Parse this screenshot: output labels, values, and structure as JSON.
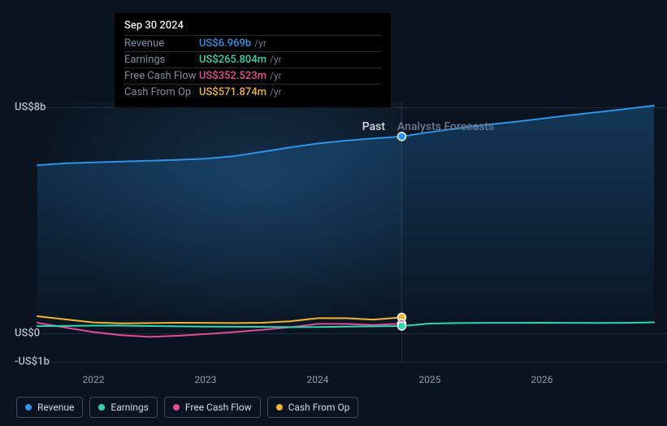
{
  "chart": {
    "type": "line",
    "background_color": "#0a1420",
    "gridline_color": "rgba(150,170,190,0.15)",
    "y_axis": {
      "ticks": [
        {
          "label": "US$8b",
          "value": 8000
        },
        {
          "label": "US$0",
          "value": 0
        },
        {
          "label": "-US$1b",
          "value": -1000
        }
      ],
      "min": -1000,
      "max": 8200
    },
    "x_axis": {
      "ticks": [
        "2022",
        "2023",
        "2024",
        "2025",
        "2026"
      ],
      "min": 2021.5,
      "max": 2027
    },
    "past_label": "Past",
    "forecast_label": "Analysts Forecasts",
    "divider_x": 2024.75,
    "past_overlay_color": "rgba(120,180,230,0.02)",
    "gradient_top": "rgba(35,120,190,0.35)",
    "gradient_bottom": "rgba(35,120,190,0.0)",
    "marker_radius": 5,
    "marker_stroke": "#ffffff",
    "series": [
      {
        "id": "revenue",
        "label": "Revenue",
        "color": "#2e93e6",
        "fill": true,
        "width": 2,
        "points": [
          [
            2021.5,
            5950
          ],
          [
            2021.75,
            6020
          ],
          [
            2022,
            6050
          ],
          [
            2022.25,
            6080
          ],
          [
            2022.5,
            6110
          ],
          [
            2022.75,
            6140
          ],
          [
            2023,
            6180
          ],
          [
            2023.25,
            6270
          ],
          [
            2023.5,
            6420
          ],
          [
            2023.75,
            6580
          ],
          [
            2024,
            6720
          ],
          [
            2024.25,
            6820
          ],
          [
            2024.5,
            6900
          ],
          [
            2024.75,
            6969
          ],
          [
            2025,
            7120
          ],
          [
            2025.25,
            7260
          ],
          [
            2025.5,
            7380
          ],
          [
            2025.75,
            7480
          ],
          [
            2026,
            7600
          ],
          [
            2026.25,
            7720
          ],
          [
            2026.5,
            7830
          ],
          [
            2026.75,
            7940
          ],
          [
            2027,
            8060
          ]
        ]
      },
      {
        "id": "cash_from_op",
        "label": "Cash From Op",
        "color": "#f0b433",
        "fill": false,
        "width": 2,
        "points": [
          [
            2021.5,
            610
          ],
          [
            2021.75,
            500
          ],
          [
            2022,
            390
          ],
          [
            2022.25,
            360
          ],
          [
            2022.5,
            370
          ],
          [
            2022.75,
            380
          ],
          [
            2023,
            375
          ],
          [
            2023.25,
            370
          ],
          [
            2023.5,
            380
          ],
          [
            2023.75,
            430
          ],
          [
            2024,
            540
          ],
          [
            2024.25,
            540
          ],
          [
            2024.5,
            490
          ],
          [
            2024.75,
            572
          ]
        ]
      },
      {
        "id": "fcf",
        "label": "Free Cash Flow",
        "color": "#e44a9a",
        "fill": false,
        "width": 2,
        "points": [
          [
            2021.5,
            380
          ],
          [
            2021.75,
            210
          ],
          [
            2022,
            50
          ],
          [
            2022.25,
            -60
          ],
          [
            2022.5,
            -120
          ],
          [
            2022.75,
            -80
          ],
          [
            2023,
            -20
          ],
          [
            2023.25,
            50
          ],
          [
            2023.5,
            130
          ],
          [
            2023.75,
            220
          ],
          [
            2024,
            340
          ],
          [
            2024.25,
            340
          ],
          [
            2024.5,
            300
          ],
          [
            2024.75,
            353
          ]
        ]
      },
      {
        "id": "earnings",
        "label": "Earnings",
        "color": "#2dd6b0",
        "fill": false,
        "width": 2,
        "points": [
          [
            2021.5,
            260
          ],
          [
            2021.75,
            270
          ],
          [
            2022,
            280
          ],
          [
            2022.25,
            280
          ],
          [
            2022.5,
            265
          ],
          [
            2022.75,
            255
          ],
          [
            2023,
            245
          ],
          [
            2023.25,
            240
          ],
          [
            2023.5,
            235
          ],
          [
            2023.75,
            225
          ],
          [
            2024,
            230
          ],
          [
            2024.25,
            245
          ],
          [
            2024.5,
            255
          ],
          [
            2024.75,
            266
          ],
          [
            2025,
            350
          ],
          [
            2025.25,
            370
          ],
          [
            2025.5,
            375
          ],
          [
            2025.75,
            378
          ],
          [
            2026,
            380
          ],
          [
            2026.25,
            375
          ],
          [
            2026.5,
            372
          ],
          [
            2026.75,
            378
          ],
          [
            2027,
            395
          ]
        ]
      }
    ],
    "hover_markers": [
      {
        "series": "revenue",
        "x": 2024.75,
        "y": 6969
      },
      {
        "series": "cash_from_op",
        "x": 2024.75,
        "y": 572
      },
      {
        "series": "fcf",
        "x": 2024.75,
        "y": 353
      },
      {
        "series": "earnings",
        "x": 2024.75,
        "y": 266
      }
    ]
  },
  "tooltip": {
    "date": "Sep 30 2024",
    "unit": "/yr",
    "rows": [
      {
        "metric": "Revenue",
        "value": "US$6.969b",
        "color": "#2e93e6"
      },
      {
        "metric": "Earnings",
        "value": "US$265.804m",
        "color": "#2dd6b0"
      },
      {
        "metric": "Free Cash Flow",
        "value": "US$352.523m",
        "color": "#e44a9a"
      },
      {
        "metric": "Cash From Op",
        "value": "US$571.874m",
        "color": "#f0b433"
      }
    ]
  },
  "legend": [
    {
      "label": "Revenue",
      "color": "#2e93e6"
    },
    {
      "label": "Earnings",
      "color": "#2dd6b0"
    },
    {
      "label": "Free Cash Flow",
      "color": "#e44a9a"
    },
    {
      "label": "Cash From Op",
      "color": "#f0b433"
    }
  ]
}
